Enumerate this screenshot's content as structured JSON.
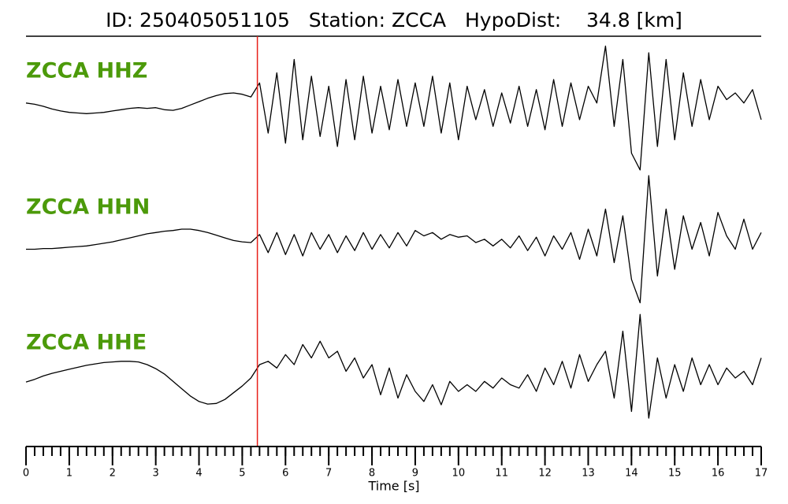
{
  "chart_data": {
    "type": "line",
    "title": "ID: 250405051105   Station: ZCCA   HypoDist:    34.8 [km]",
    "xlabel": "Time [s]",
    "xlim": [
      0,
      17
    ],
    "xticks": [
      0,
      1,
      2,
      3,
      4,
      5,
      6,
      7,
      8,
      9,
      10,
      11,
      12,
      13,
      14,
      15,
      16,
      17
    ],
    "minor_tick_step": 0.2,
    "ylim": [
      -1,
      1
    ],
    "label_color": "#4c9a0a",
    "pick_time": 5.35,
    "pick_color": "#e8201a",
    "x": [
      0,
      0.2,
      0.4,
      0.6,
      0.8,
      1,
      1.2,
      1.4,
      1.6,
      1.8,
      2,
      2.2,
      2.4,
      2.6,
      2.8,
      3,
      3.2,
      3.4,
      3.6,
      3.8,
      4,
      4.2,
      4.4,
      4.6,
      4.8,
      5,
      5.2,
      5.4,
      5.6,
      5.8,
      6,
      6.2,
      6.4,
      6.6,
      6.8,
      7,
      7.2,
      7.4,
      7.6,
      7.8,
      8,
      8.2,
      8.4,
      8.6,
      8.8,
      9,
      9.2,
      9.4,
      9.6,
      9.8,
      10,
      10.2,
      10.4,
      10.6,
      10.8,
      11,
      11.2,
      11.4,
      11.6,
      11.8,
      12,
      12.2,
      12.4,
      12.6,
      12.8,
      13,
      13.2,
      13.4,
      13.6,
      13.8,
      14,
      14.2,
      14.4,
      14.6,
      14.8,
      15,
      15.2,
      15.4,
      15.6,
      15.8,
      16,
      16.2,
      16.4,
      16.6,
      16.8,
      17
    ],
    "series": [
      {
        "name": "ZCCA HHZ",
        "color": "#000000",
        "values": [
          0.05,
          0.03,
          0.0,
          -0.04,
          -0.07,
          -0.09,
          -0.1,
          -0.11,
          -0.1,
          -0.09,
          -0.07,
          -0.05,
          -0.03,
          -0.02,
          -0.03,
          -0.02,
          -0.05,
          -0.06,
          -0.03,
          0.02,
          0.07,
          0.12,
          0.16,
          0.19,
          0.2,
          0.18,
          0.14,
          0.35,
          -0.4,
          0.5,
          -0.55,
          0.7,
          -0.5,
          0.45,
          -0.45,
          0.3,
          -0.6,
          0.4,
          -0.5,
          0.45,
          -0.4,
          0.3,
          -0.35,
          0.4,
          -0.3,
          0.35,
          -0.3,
          0.45,
          -0.4,
          0.35,
          -0.5,
          0.3,
          -0.2,
          0.25,
          -0.3,
          0.2,
          -0.25,
          0.3,
          -0.3,
          0.25,
          -0.35,
          0.4,
          -0.3,
          0.35,
          -0.2,
          0.3,
          0.05,
          0.9,
          -0.3,
          0.7,
          -0.7,
          -0.95,
          0.8,
          -0.6,
          0.7,
          -0.5,
          0.5,
          -0.3,
          0.4,
          -0.2,
          0.3,
          0.1,
          0.2,
          0.05,
          0.25,
          -0.2
        ]
      },
      {
        "name": "ZCCA HHN",
        "color": "#000000",
        "values": [
          -0.1,
          -0.1,
          -0.09,
          -0.09,
          -0.08,
          -0.07,
          -0.06,
          -0.05,
          -0.03,
          -0.01,
          0.01,
          0.04,
          0.07,
          0.1,
          0.13,
          0.15,
          0.17,
          0.18,
          0.2,
          0.2,
          0.18,
          0.15,
          0.11,
          0.07,
          0.03,
          0.01,
          0.0,
          0.12,
          -0.15,
          0.15,
          -0.18,
          0.12,
          -0.2,
          0.15,
          -0.1,
          0.12,
          -0.15,
          0.1,
          -0.12,
          0.15,
          -0.1,
          0.12,
          -0.08,
          0.15,
          -0.05,
          0.18,
          0.1,
          0.15,
          0.05,
          0.12,
          0.08,
          0.1,
          0.0,
          0.05,
          -0.05,
          0.05,
          -0.08,
          0.1,
          -0.12,
          0.08,
          -0.2,
          0.1,
          -0.1,
          0.15,
          -0.25,
          0.2,
          -0.2,
          0.5,
          -0.3,
          0.4,
          -0.55,
          -0.9,
          1.0,
          -0.5,
          0.5,
          -0.4,
          0.4,
          -0.1,
          0.3,
          -0.2,
          0.45,
          0.1,
          -0.1,
          0.35,
          -0.1,
          0.15
        ]
      },
      {
        "name": "ZCCA HHE",
        "color": "#000000",
        "values": [
          -0.06,
          -0.02,
          0.03,
          0.07,
          0.1,
          0.13,
          0.16,
          0.19,
          0.21,
          0.23,
          0.24,
          0.25,
          0.25,
          0.24,
          0.2,
          0.14,
          0.06,
          -0.05,
          -0.16,
          -0.27,
          -0.35,
          -0.39,
          -0.38,
          -0.32,
          -0.22,
          -0.12,
          0.0,
          0.2,
          0.25,
          0.15,
          0.35,
          0.2,
          0.5,
          0.3,
          0.55,
          0.3,
          0.4,
          0.1,
          0.3,
          0.0,
          0.2,
          -0.25,
          0.15,
          -0.3,
          0.05,
          -0.2,
          -0.35,
          -0.1,
          -0.4,
          -0.05,
          -0.2,
          -0.1,
          -0.2,
          -0.05,
          -0.15,
          0.0,
          -0.1,
          -0.15,
          0.05,
          -0.2,
          0.15,
          -0.1,
          0.25,
          -0.15,
          0.35,
          -0.05,
          0.2,
          0.4,
          -0.3,
          0.7,
          -0.5,
          0.95,
          -0.6,
          0.3,
          -0.3,
          0.2,
          -0.2,
          0.3,
          -0.1,
          0.2,
          -0.1,
          0.15,
          0.0,
          0.1,
          -0.1,
          0.3
        ]
      }
    ]
  }
}
